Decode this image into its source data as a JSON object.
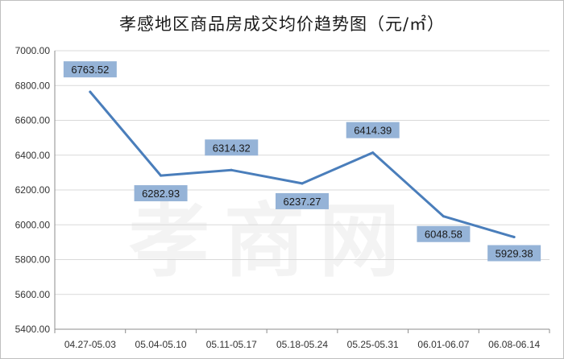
{
  "title": "孝感地区商品房成交均价趋势图（元/㎡）",
  "watermark_text": "孝商网",
  "colors": {
    "line": "#4a7ebb",
    "label_bg": "#95b3d7",
    "grid": "#d9d9d9",
    "axis": "#8c8c8c"
  },
  "chart_data": {
    "type": "line",
    "title": "孝感地区商品房成交均价趋势图（元/㎡）",
    "xlabel": "",
    "ylabel": "",
    "categories": [
      "04.27-05.03",
      "05.04-05.10",
      "05.11-05.17",
      "05.18-05.24",
      "05.25-05.31",
      "06.01-06.07",
      "06.08-06.14"
    ],
    "series": [
      {
        "values": [
          6763.52,
          6282.93,
          6314.32,
          6237.27,
          6414.39,
          6048.58,
          5929.38
        ]
      }
    ],
    "data_labels": [
      "6763.52",
      "6282.93",
      "6314.32",
      "6237.27",
      "6414.39",
      "6048.58",
      "5929.38"
    ],
    "ylim": [
      5400,
      7000
    ],
    "yticks": [
      5400,
      5600,
      5800,
      6000,
      6200,
      6400,
      6600,
      6800,
      7000
    ],
    "ytick_labels": [
      "5400.00",
      "5600.00",
      "5800.00",
      "6000.00",
      "6200.00",
      "6400.00",
      "6600.00",
      "6800.00",
      "7000.00"
    ],
    "grid": true,
    "legend": "none"
  }
}
